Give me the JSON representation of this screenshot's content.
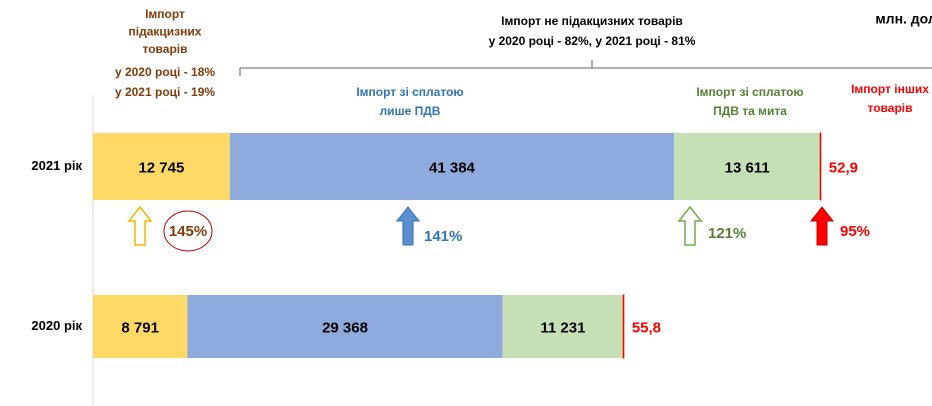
{
  "chart_data": {
    "type": "bar",
    "orientation": "horizontal",
    "stacked": true,
    "unit": "млн. дол.",
    "note": [
      "Імпорт не підакцизних товарів",
      "у 2020 році  - 82%, у 2021 році - 81%"
    ],
    "share": [
      "у 2020 році  - 18%",
      "у 2021 році - 19%"
    ],
    "categories": [
      "2021 рік",
      "2020 рік"
    ],
    "xlim": [
      0,
      68000
    ],
    "series": [
      {
        "name": [
          "Імпорт",
          "підакцизних",
          "товарів"
        ],
        "color": "#ffd966",
        "text_color": "#843c0c",
        "values": [
          12745,
          8791
        ],
        "value_labels": [
          "12 745",
          "8 791"
        ],
        "growth_label": "145%"
      },
      {
        "name": [
          "Імпорт зі сплатою",
          "лише ПДВ"
        ],
        "color": "#8faadc",
        "text_color": "#2e75b6",
        "values": [
          41384,
          29368
        ],
        "value_labels": [
          "41 384",
          "29 368"
        ],
        "growth_label": "141%"
      },
      {
        "name": [
          "Імпорт зі сплатою",
          "ПДВ та мита"
        ],
        "color": "#c5e0b4",
        "text_color": "#548235",
        "values": [
          13611,
          11231
        ],
        "value_labels": [
          "13 611",
          "11 231"
        ],
        "growth_label": "121%"
      },
      {
        "name": [
          "Імпорт інших",
          "товарів"
        ],
        "color": "#ff0000",
        "text_color": "#ff0000",
        "values": [
          52.9,
          55.8
        ],
        "value_labels": [
          "52,9",
          "55,8"
        ],
        "growth_label": "95%"
      }
    ]
  }
}
